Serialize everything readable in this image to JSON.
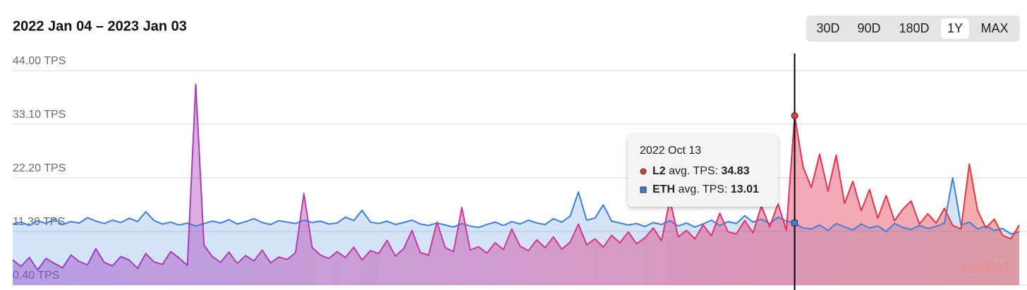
{
  "title": "2022 Jan 04 – 2023 Jan 03",
  "ranges": [
    "30D",
    "90D",
    "180D",
    "1Y",
    "MAX"
  ],
  "active_range": "1Y",
  "logo": "L2BEAT",
  "tooltip": {
    "date": "2022 Oct 13",
    "label": "avg. TPS:"
  },
  "chart_data": {
    "type": "area",
    "ylim": [
      0.4,
      44
    ],
    "yticks": [
      {
        "value": 0.4,
        "label": "0.40 TPS"
      },
      {
        "value": 11.3,
        "label": "11.30 TPS"
      },
      {
        "value": 22.2,
        "label": "22.20 TPS"
      },
      {
        "value": 33.1,
        "label": "33.10 TPS"
      },
      {
        "value": 44,
        "label": "44.00 TPS"
      }
    ],
    "grid": true,
    "series": [
      {
        "name": "L2",
        "color": "#e53935",
        "values": [
          5.5,
          4.2,
          6.0,
          3.5,
          5.8,
          4.8,
          3.9,
          6.5,
          5.2,
          4.5,
          7.8,
          5.0,
          4.3,
          6.2,
          5.5,
          3.8,
          6.8,
          5.1,
          4.6,
          7.2,
          5.9,
          4.4,
          41.2,
          8.5,
          6.2,
          5.0,
          7.1,
          4.8,
          6.4,
          5.3,
          7.5,
          4.9,
          6.1,
          5.6,
          7.0,
          19.0,
          8.0,
          6.5,
          5.8,
          7.2,
          6.0,
          8.1,
          5.5,
          7.4,
          6.8,
          9.5,
          6.3,
          7.8,
          11.5,
          7.0,
          6.5,
          13.2,
          8.0,
          7.2,
          16.2,
          7.5,
          8.2,
          6.9,
          9.0,
          7.6,
          11.8,
          8.3,
          7.4,
          9.6,
          8.0,
          10.2,
          7.7,
          9.1,
          12.8,
          8.6,
          9.8,
          8.1,
          10.5,
          9.0,
          11.2,
          8.8,
          10.0,
          12.0,
          9.4,
          17.8,
          10.2,
          11.5,
          9.8,
          12.6,
          10.4,
          15.0,
          11.2,
          10.8,
          13.5,
          11.0,
          16.5,
          12.2,
          17.0,
          11.5,
          34.83,
          24.5,
          20.2,
          27.0,
          19.5,
          26.8,
          17.0,
          21.5,
          15.5,
          19.8,
          14.0,
          18.6,
          13.5,
          15.8,
          17.5,
          12.8,
          14.9,
          13.0,
          16.0,
          12.5,
          11.8,
          25.0,
          15.5,
          12.0,
          13.8,
          10.5,
          9.8,
          12.6
        ]
      },
      {
        "name": "ETH",
        "color": "#3d7fdd",
        "values": [
          12.8,
          13.2,
          12.5,
          13.5,
          12.9,
          13.8,
          12.7,
          13.3,
          13.0,
          14.1,
          13.4,
          12.9,
          13.6,
          13.1,
          14.0,
          13.3,
          15.3,
          13.5,
          12.8,
          13.2,
          12.6,
          13.0,
          12.4,
          12.9,
          13.4,
          13.0,
          13.7,
          12.8,
          13.3,
          13.9,
          13.1,
          12.7,
          13.5,
          13.2,
          12.9,
          13.6,
          13.1,
          13.4,
          12.8,
          13.0,
          14.2,
          13.5,
          15.6,
          13.2,
          12.9,
          13.4,
          12.7,
          13.1,
          13.6,
          12.8,
          12.5,
          13.0,
          12.6,
          12.2,
          12.9,
          12.4,
          12.1,
          12.7,
          13.2,
          12.5,
          13.3,
          12.8,
          13.6,
          13.0,
          12.7,
          13.9,
          13.2,
          14.4,
          19.3,
          13.6,
          14.0,
          16.7,
          13.4,
          13.0,
          12.6,
          12.9,
          12.3,
          13.1,
          12.7,
          13.5,
          12.4,
          13.0,
          12.2,
          12.8,
          13.6,
          12.5,
          13.3,
          12.9,
          14.5,
          13.2,
          13.8,
          12.9,
          14.2,
          13.4,
          13.01,
          12.0,
          11.8,
          12.6,
          11.5,
          12.9,
          12.2,
          11.6,
          12.8,
          12.0,
          12.4,
          11.3,
          12.9,
          12.1,
          11.7,
          12.5,
          11.9,
          12.3,
          13.0,
          22.2,
          12.6,
          13.2,
          11.8,
          12.4,
          11.5,
          11.9,
          10.8,
          11.2
        ]
      }
    ]
  }
}
